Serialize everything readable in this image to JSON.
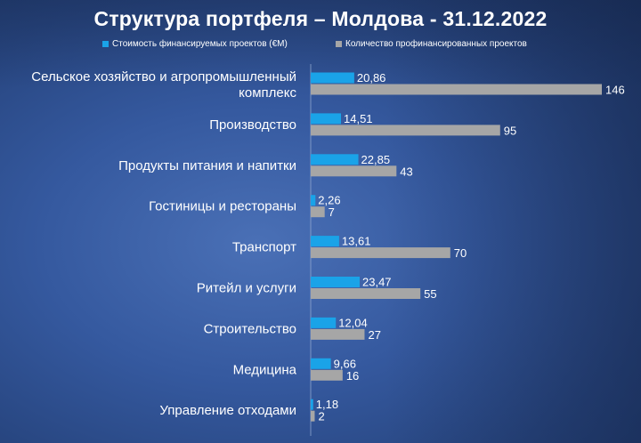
{
  "chart_data": {
    "type": "bar",
    "orientation": "horizontal",
    "title": "Структура портфеля – Молдова - 31.12.2022",
    "categories": [
      "Сельское хозяйство и агропромышленный комплекс",
      "Производство",
      "Продукты питания и напитки",
      "Гостиницы и рестораны",
      "Транспорт",
      "Ритейл и услуги",
      "Строительство",
      "Медицина",
      "Управление отходами"
    ],
    "category_lines": [
      [
        "Сельское хозяйство и агропромышленный",
        "комплекс"
      ],
      [
        "Производство"
      ],
      [
        "Продукты питания и напитки"
      ],
      [
        "Гостиницы и рестораны"
      ],
      [
        "Транспорт"
      ],
      [
        "Ритейл и услуги"
      ],
      [
        "Строительство"
      ],
      [
        "Медицина"
      ],
      [
        "Управление отходами"
      ]
    ],
    "series": [
      {
        "name": "Стоимость финансируемых проектов (€M)",
        "color": "#1aa3e8",
        "values": [
          20.86,
          14.51,
          22.85,
          2.26,
          13.61,
          23.47,
          12.04,
          9.66,
          1.18
        ],
        "labels": [
          "20,86",
          "14,51",
          "22,85",
          "2,26",
          "13,61",
          "23,47",
          "12,04",
          "9,66",
          "1,18"
        ]
      },
      {
        "name": "Количество профинансированных проектов",
        "color": "#a6a6a6",
        "values": [
          146,
          95,
          43,
          7,
          70,
          55,
          27,
          16,
          2
        ],
        "labels": [
          "146",
          "95",
          "43",
          "7",
          "70",
          "55",
          "27",
          "16",
          "2"
        ]
      }
    ],
    "legend_position": "top",
    "grid": false
  }
}
